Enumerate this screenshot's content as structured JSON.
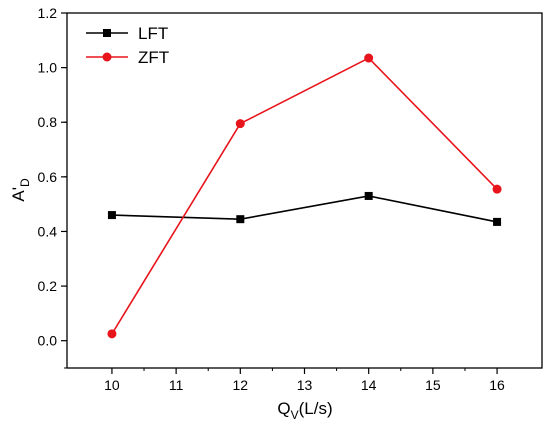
{
  "chart_data": {
    "type": "line",
    "x": [
      10,
      12,
      14,
      16
    ],
    "series": [
      {
        "name": "LFT",
        "values": [
          0.46,
          0.445,
          0.53,
          0.435
        ],
        "color": "#000000",
        "marker": "square"
      },
      {
        "name": "ZFT",
        "values": [
          0.025,
          0.795,
          1.035,
          0.555
        ],
        "color": "#e8141b",
        "marker": "circle"
      }
    ],
    "xlabel": {
      "main": "Q",
      "sub": "V",
      "rest": "(L/s)"
    },
    "ylabel": {
      "main": "A'",
      "sub": "D"
    },
    "xlim": [
      9.3,
      16.7
    ],
    "ylim": [
      -0.1,
      1.2
    ],
    "xticks": [
      10,
      11,
      12,
      13,
      14,
      15,
      16
    ],
    "xtick_labels": [
      "10",
      "11",
      "12",
      "13",
      "14",
      "15",
      "16"
    ],
    "yticks": [
      0.0,
      0.2,
      0.4,
      0.6,
      0.8,
      1.0,
      1.2
    ],
    "ytick_labels": [
      "0.0",
      "0.2",
      "0.4",
      "0.6",
      "0.8",
      "1.0",
      "1.2"
    ],
    "grid": false,
    "legend": "top-left"
  }
}
